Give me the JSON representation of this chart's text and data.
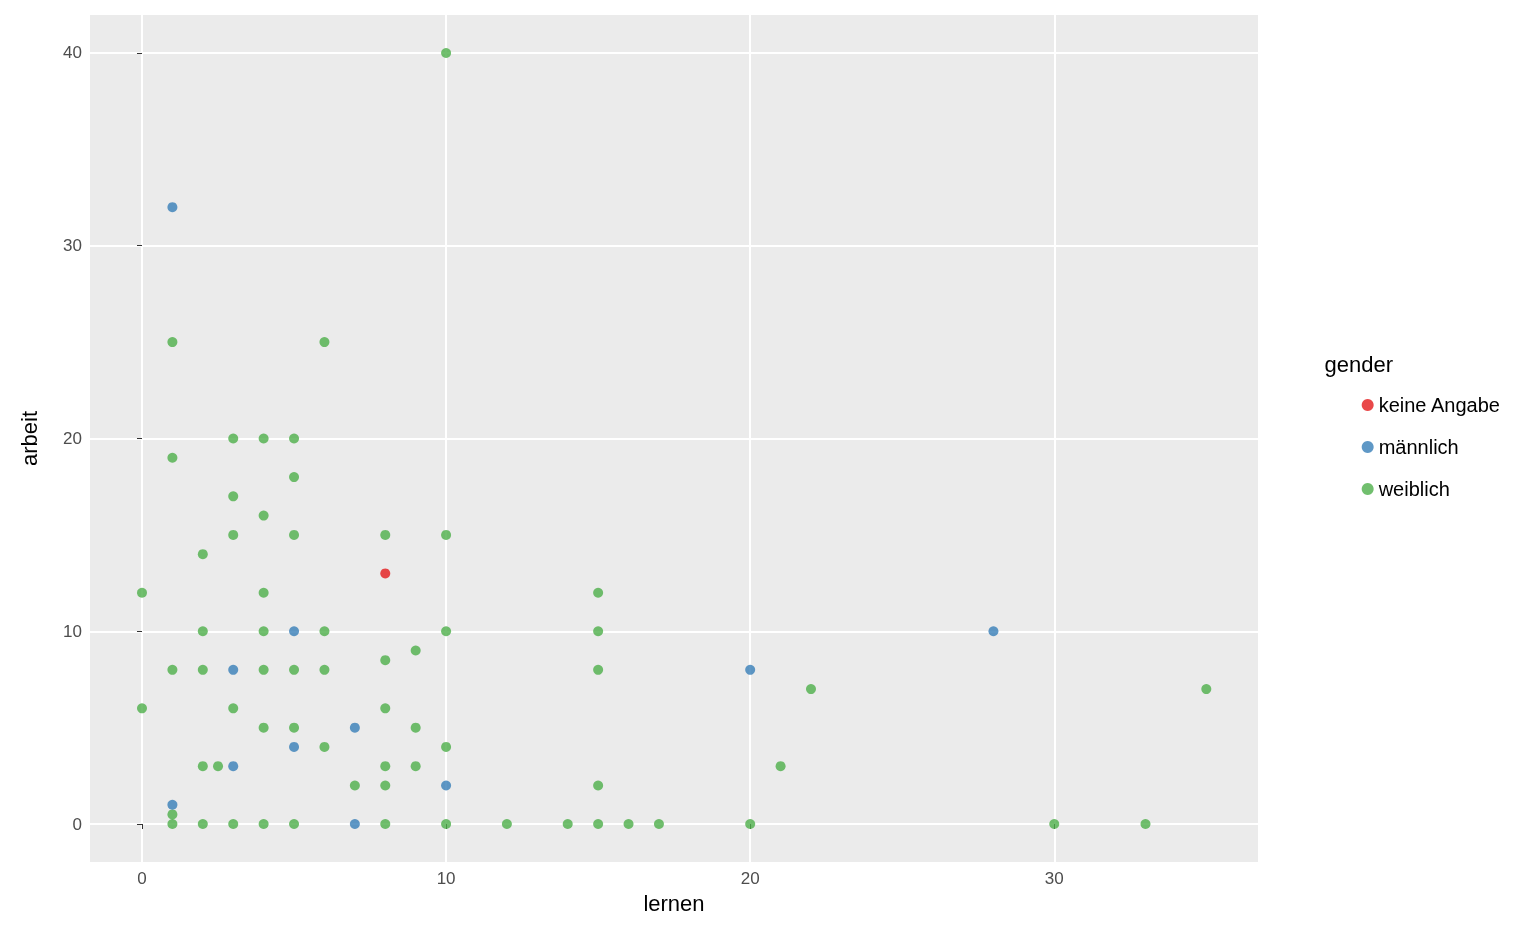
{
  "chart_data": {
    "type": "scatter",
    "xlabel": "lernen",
    "ylabel": "arbeit",
    "legend_title": "gender",
    "legend": "right",
    "marker": "circle",
    "grid": true,
    "xlim": [
      -1.71,
      36.7
    ],
    "ylim": [
      -1.97,
      41.97
    ],
    "xticks": [
      0,
      10,
      20,
      30
    ],
    "yticks": [
      0,
      10,
      20,
      30,
      40
    ],
    "series": [
      {
        "name": "keine Angabe",
        "color": "#e41a1c",
        "x": [
          8
        ],
        "values": [
          13
        ]
      },
      {
        "name": "männlich",
        "color": "#377eb8",
        "x": [
          1,
          5,
          3,
          7,
          5,
          3,
          1,
          10,
          7,
          20,
          28
        ],
        "values": [
          32,
          10,
          8,
          5,
          4,
          3,
          1,
          2,
          0,
          8,
          10
        ]
      },
      {
        "name": "weiblich",
        "color": "#4daf4a",
        "x": [
          10,
          1,
          6,
          3,
          4,
          5,
          1,
          5,
          3,
          4,
          3,
          5,
          8,
          10,
          2,
          0,
          4,
          15,
          2,
          4,
          6,
          10,
          15,
          1,
          2,
          4,
          5,
          6,
          15,
          8,
          9,
          0,
          3,
          8,
          22,
          35,
          4,
          5,
          9,
          6,
          10,
          2,
          2.5,
          8,
          9,
          21,
          7,
          8,
          15,
          1,
          1,
          2,
          3,
          4,
          5,
          8,
          10,
          12,
          14,
          15,
          16,
          17,
          20,
          30,
          33
        ],
        "values": [
          40,
          25,
          25,
          20,
          20,
          20,
          19,
          18,
          17,
          16,
          15,
          15,
          15,
          15,
          14,
          12,
          12,
          12,
          10,
          10,
          10,
          10,
          10,
          8,
          8,
          8,
          8,
          8,
          8,
          8.5,
          9,
          6,
          6,
          6,
          7,
          7,
          5,
          5,
          5,
          4,
          4,
          3,
          3,
          3,
          3,
          3,
          2,
          2,
          2,
          0.5,
          0,
          0,
          0,
          0,
          0,
          0,
          0,
          0,
          0,
          0,
          0,
          0,
          0,
          0,
          0
        ]
      }
    ]
  }
}
